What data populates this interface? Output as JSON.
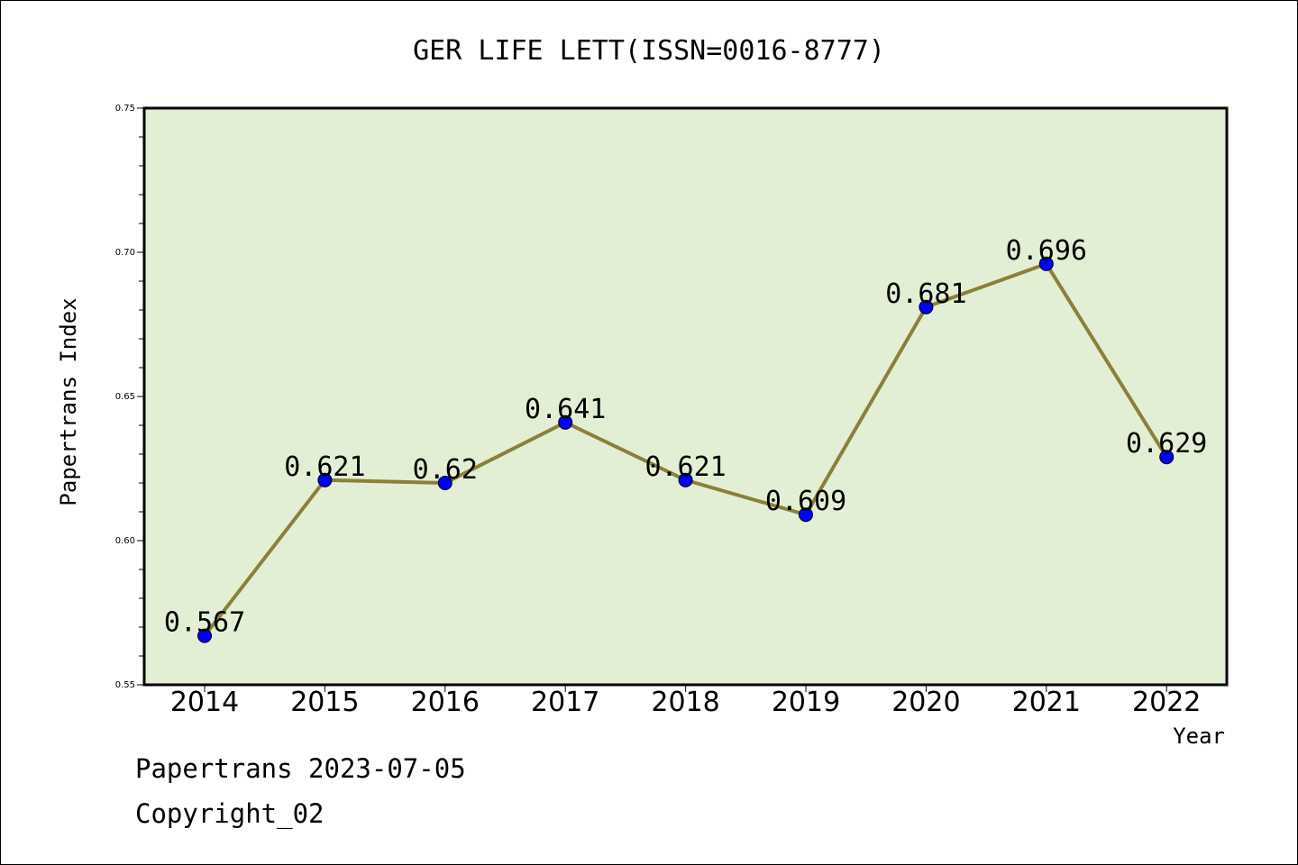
{
  "chart_data": {
    "type": "line",
    "title": "GER LIFE LETT(ISSN=0016-8777)",
    "xlabel": "Year",
    "ylabel": "Papertrans Index",
    "categories": [
      "2014",
      "2015",
      "2016",
      "2017",
      "2018",
      "2019",
      "2020",
      "2021",
      "2022"
    ],
    "values": [
      0.567,
      0.621,
      0.62,
      0.641,
      0.621,
      0.609,
      0.681,
      0.696,
      0.629
    ],
    "data_labels": [
      "0.567",
      "0.621",
      "0.62",
      "0.641",
      "0.621",
      "0.609",
      "0.681",
      "0.696",
      "0.629"
    ],
    "ylim": [
      0.55,
      0.75
    ],
    "yticks": [
      "0.55",
      "0.60",
      "0.65",
      "0.70",
      "0.75"
    ],
    "grid": false,
    "colors": {
      "plot_bg": "#e2efd4",
      "line": "#8c7f3a",
      "marker": "#0000ff"
    }
  },
  "footer": {
    "line1": "Papertrans 2023-07-05",
    "line2": "Copyright_02"
  }
}
